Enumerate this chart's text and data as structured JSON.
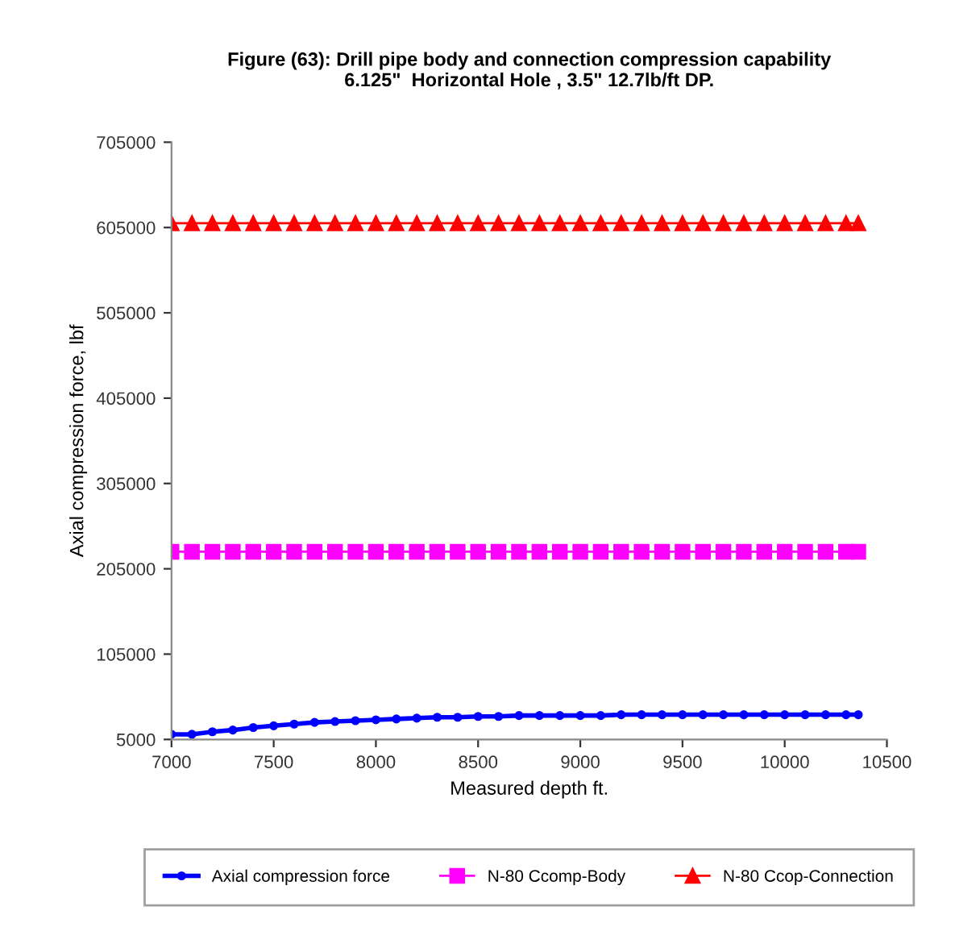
{
  "chart_data": {
    "type": "line",
    "title": "Figure (63): Drill pipe body and connection compression capability\n6.125\"  Horizontal Hole , 3.5\" 12.7lb/ft DP.",
    "xlabel": "Measured depth ft.",
    "ylabel": "Axial compression force, lbf",
    "x": [
      7000,
      7100,
      7200,
      7300,
      7400,
      7500,
      7600,
      7700,
      7800,
      7900,
      8000,
      8100,
      8200,
      8300,
      8400,
      8500,
      8600,
      8700,
      8800,
      8900,
      9000,
      9100,
      9200,
      9300,
      9400,
      9500,
      9600,
      9700,
      9800,
      9900,
      10000,
      10100,
      10200,
      10300,
      10360
    ],
    "series": [
      {
        "name": "Axial compression force",
        "color": "#0000ff",
        "marker": "circle",
        "values": [
          11000,
          11000,
          14000,
          16000,
          19000,
          21000,
          23000,
          25000,
          26000,
          27000,
          28000,
          29000,
          30000,
          31000,
          31000,
          32000,
          32000,
          33000,
          33000,
          33000,
          33000,
          33000,
          34000,
          34000,
          34000,
          34000,
          34000,
          34000,
          34000,
          34000,
          34000,
          34000,
          34000,
          34000,
          34000
        ]
      },
      {
        "name": "N-80 Ccomp-Body",
        "color": "#ff00ff",
        "marker": "square",
        "values": [
          225000,
          225000,
          225000,
          225000,
          225000,
          225000,
          225000,
          225000,
          225000,
          225000,
          225000,
          225000,
          225000,
          225000,
          225000,
          225000,
          225000,
          225000,
          225000,
          225000,
          225000,
          225000,
          225000,
          225000,
          225000,
          225000,
          225000,
          225000,
          225000,
          225000,
          225000,
          225000,
          225000,
          225000,
          225000
        ]
      },
      {
        "name": "N-80 Ccop-Connection",
        "color": "#ff0000",
        "marker": "triangle",
        "values": [
          610000,
          610000,
          610000,
          610000,
          610000,
          610000,
          610000,
          610000,
          610000,
          610000,
          610000,
          610000,
          610000,
          610000,
          610000,
          610000,
          610000,
          610000,
          610000,
          610000,
          610000,
          610000,
          610000,
          610000,
          610000,
          610000,
          610000,
          610000,
          610000,
          610000,
          610000,
          610000,
          610000,
          610000,
          610000
        ]
      }
    ],
    "xlim": [
      7000,
      10500
    ],
    "xticks": [
      7000,
      7500,
      8000,
      8500,
      9000,
      9500,
      10000,
      10500
    ],
    "ylim": [
      5000,
      705000
    ],
    "yticks": [
      5000,
      105000,
      205000,
      305000,
      405000,
      505000,
      605000,
      705000
    ],
    "grid": false,
    "legend": "bottom",
    "line_style": "solid"
  }
}
